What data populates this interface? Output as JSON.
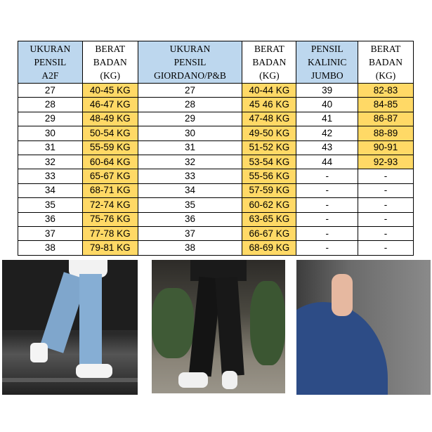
{
  "size_chart": {
    "headers": [
      [
        "UKURAN",
        "PENSIL",
        "A2F"
      ],
      [
        "BERAT",
        "BADAN",
        "(KG)"
      ],
      [
        "UKURAN",
        "PENSIL",
        "GIORDANO/P&B"
      ],
      [
        "BERAT",
        "BADAN",
        "(KG)"
      ],
      [
        "PENSIL",
        "KALINIC",
        "JUMBO"
      ],
      [
        "BERAT",
        "BADAN",
        "(KG)"
      ]
    ],
    "rows": [
      [
        "27",
        "40-45 KG",
        "27",
        "40-44 KG",
        "39",
        "82-83"
      ],
      [
        "28",
        "46-47 KG",
        "28",
        "45 46 KG",
        "40",
        "84-85"
      ],
      [
        "29",
        "48-49 KG",
        "29",
        "47-48 KG",
        "41",
        "86-87"
      ],
      [
        "30",
        "50-54 KG",
        "30",
        "49-50 KG",
        "42",
        "88-89"
      ],
      [
        "31",
        "55-59 KG",
        "31",
        "51-52 KG",
        "43",
        "90-91"
      ],
      [
        "32",
        "60-64 KG",
        "32",
        "53-54 KG",
        "44",
        "92-93"
      ],
      [
        "33",
        "65-67 KG",
        "33",
        "55-56 KG",
        "-",
        "-"
      ],
      [
        "34",
        "68-71 KG",
        "34",
        "57-59 KG",
        "-",
        "-"
      ],
      [
        "35",
        "72-74 KG",
        "35",
        "60-62 KG",
        "-",
        "-"
      ],
      [
        "36",
        "75-76 KG",
        "36",
        "63-65 KG",
        "-",
        "-"
      ],
      [
        "37",
        "77-78 KG",
        "37",
        "66-67 KG",
        "-",
        "-"
      ],
      [
        "38",
        "79-81 KG",
        "38",
        "68-69 KG",
        "-",
        "-"
      ]
    ],
    "colors": {
      "header_blue": "#bdd7ee",
      "weight_yellow": "#ffd966"
    }
  },
  "photos": [
    {
      "subject": "light-blue-jeans-white-sneakers"
    },
    {
      "subject": "black-jeans-white-sneakers"
    },
    {
      "subject": "dark-blue-denim-closeup"
    }
  ]
}
